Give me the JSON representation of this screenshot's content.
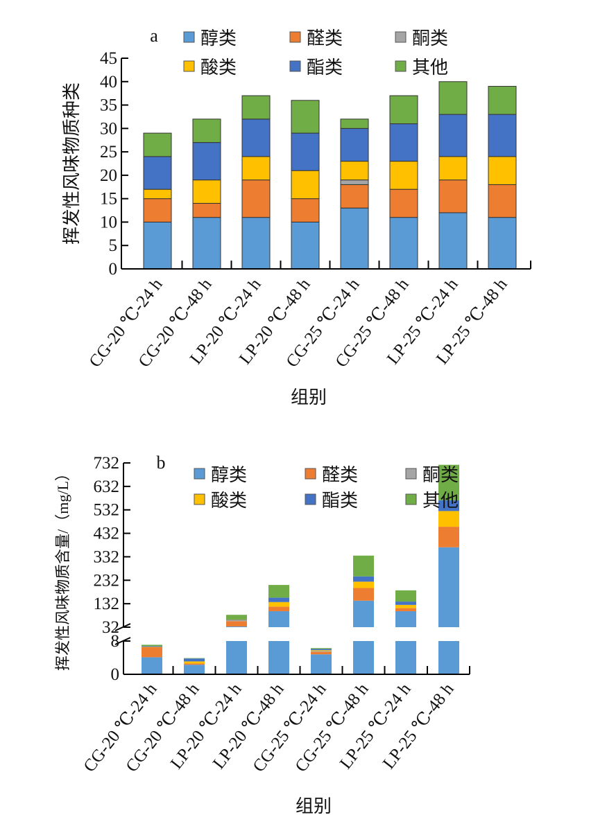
{
  "colors": {
    "醇类": "#5b9bd5",
    "醛类": "#ed7d31",
    "酮类": "#a5a5a5",
    "酸类": "#ffc000",
    "酯类": "#4472c4",
    "其他": "#70ad47"
  },
  "chart_data": [
    {
      "type": "bar",
      "stacked": true,
      "panel_label": "a",
      "title": "",
      "xlabel": "组别",
      "ylabel": "挥发性风味物质种类",
      "ylim": [
        0,
        45
      ],
      "yticks": [
        "0",
        "5",
        "10",
        "15",
        "20",
        "25",
        "30",
        "35",
        "40",
        "45"
      ],
      "legend_placement": "top",
      "categories": [
        "CG-20 ℃-24 h",
        "CG-20 ℃-48 h",
        "LP-20 ℃-24 h",
        "LP-20 ℃-48 h",
        "CG-25 ℃-24 h",
        "CG-25 ℃-48 h",
        "LP-25 ℃-24 h",
        "LP-25 ℃-48 h"
      ],
      "series": [
        {
          "name": "醇类",
          "values": [
            10,
            11,
            11,
            10,
            13,
            11,
            12,
            11
          ]
        },
        {
          "name": "醛类",
          "values": [
            5,
            3,
            8,
            5,
            5,
            6,
            7,
            7
          ]
        },
        {
          "name": "酮类",
          "values": [
            0,
            0,
            0,
            0,
            1,
            0,
            0,
            0
          ]
        },
        {
          "name": "酸类",
          "values": [
            2,
            5,
            5,
            6,
            4,
            6,
            5,
            6
          ]
        },
        {
          "name": "酯类",
          "values": [
            7,
            8,
            8,
            8,
            7,
            8,
            9,
            9
          ]
        },
        {
          "name": "其他",
          "values": [
            5,
            5,
            5,
            7,
            2,
            6,
            7,
            6
          ]
        }
      ]
    },
    {
      "type": "bar",
      "stacked": true,
      "panel_label": "b",
      "title": "",
      "xlabel": "组别",
      "ylabel": "挥发性风味物质含量/（mg/L）",
      "ylim": [
        0,
        732
      ],
      "axis_break": [
        8,
        32
      ],
      "yticks": [
        "0",
        "8",
        "32",
        "132",
        "232",
        "332",
        "432",
        "532",
        "632",
        "732"
      ],
      "legend_placement": "top",
      "categories": [
        "CG-20 ℃-24 h",
        "CG-20 ℃-48 h",
        "LP-20 ℃-24 h",
        "LP-20 ℃-48 h",
        "CG-25 ℃-24 h",
        "CG-25 ℃-48 h",
        "LP-25 ℃-24 h",
        "LP-25 ℃-48 h"
      ],
      "series": [
        {
          "name": "醇类",
          "values": [
            4.1,
            2.3,
            35,
            100,
            4.8,
            145,
            100,
            372.5
          ]
        },
        {
          "name": "醛类",
          "values": [
            2.4,
            0.3,
            22.6,
            19.6,
            0.6,
            54,
            13,
            87.5
          ]
        },
        {
          "name": "酮类",
          "values": [
            0,
            0,
            4,
            0,
            0.2,
            0,
            0,
            0
          ]
        },
        {
          "name": "酸类",
          "values": [
            0.1,
            0.5,
            2,
            19.4,
            0.2,
            27,
            14,
            67
          ]
        },
        {
          "name": "酯类",
          "values": [
            0.2,
            0.7,
            1,
            19,
            0.3,
            22.5,
            14,
            46
          ]
        },
        {
          "name": "其他",
          "values": [
            0.3,
            0.1,
            20,
            54,
            0.2,
            88.5,
            48,
            151
          ]
        }
      ]
    }
  ]
}
